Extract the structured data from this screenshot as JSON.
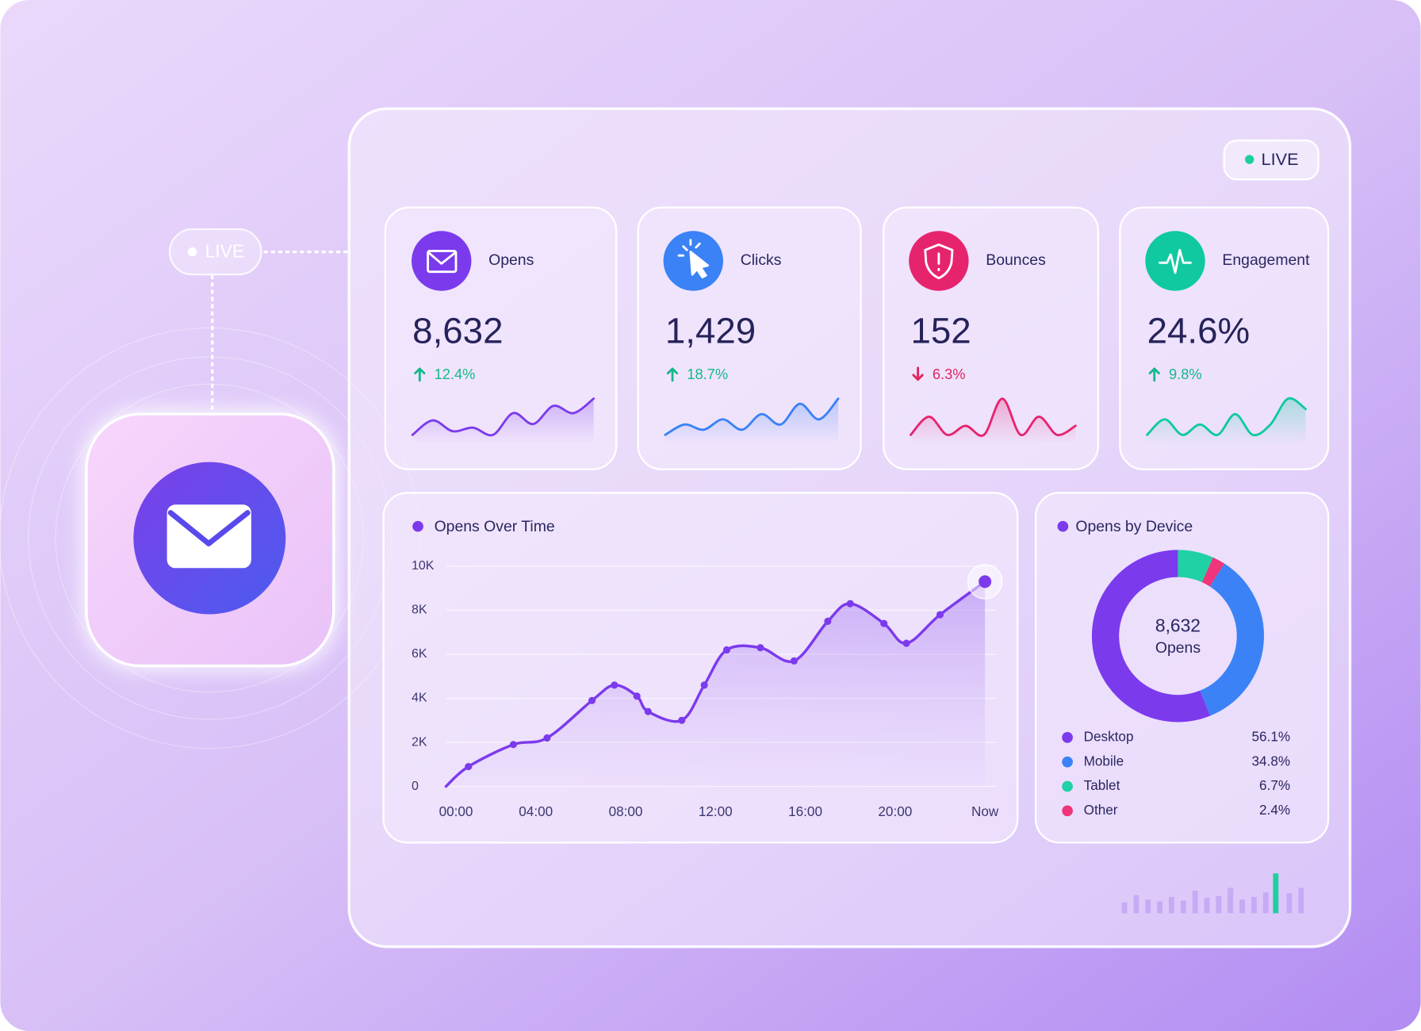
{
  "live_badge_left": "LIVE",
  "live_badge_top": "LIVE",
  "kpis": [
    {
      "label": "Opens",
      "value": "8,632",
      "change": "12.4%",
      "direction": "up",
      "color": "#7c3aed",
      "sparkline": [
        2,
        4,
        2.5,
        3,
        2,
        5,
        3.5,
        6,
        5,
        7
      ]
    },
    {
      "label": "Clicks",
      "value": "1,429",
      "change": "18.7%",
      "direction": "up",
      "color": "#3b82f6",
      "sparkline": [
        1,
        3,
        2,
        4,
        2,
        5,
        3,
        7,
        4,
        8
      ]
    },
    {
      "label": "Bounces",
      "value": "152",
      "change": "6.3%",
      "direction": "down",
      "color": "#e6246e",
      "sparkline": [
        3,
        5,
        3,
        4,
        3,
        7,
        3,
        5,
        3,
        4
      ]
    },
    {
      "label": "Engagement",
      "value": "24.6%",
      "change": "9.8%",
      "direction": "up",
      "color": "#10c9a0",
      "sparkline": [
        2,
        5,
        2,
        4,
        2,
        6,
        2,
        4,
        9,
        7
      ]
    }
  ],
  "opens_over_time": {
    "type": "line",
    "title": "Opens Over Time",
    "color": "#7c3aed",
    "x": [
      0,
      1,
      3,
      4.5,
      6.5,
      7.5,
      8.5,
      9,
      10.5,
      11.5,
      12.5,
      14,
      15.5,
      17,
      18,
      19.5,
      20.5,
      22,
      24
    ],
    "values": [
      0,
      900,
      1900,
      2200,
      3900,
      4600,
      4100,
      3400,
      3000,
      4600,
      6200,
      6300,
      5700,
      7500,
      8300,
      7400,
      6500,
      7800,
      9300
    ],
    "xlim": [
      0,
      24
    ],
    "xticks": [
      {
        "value": 0,
        "label": "00:00"
      },
      {
        "value": 4,
        "label": "04:00"
      },
      {
        "value": 8,
        "label": "08:00"
      },
      {
        "value": 12,
        "label": "12:00"
      },
      {
        "value": 16,
        "label": "16:00"
      },
      {
        "value": 20,
        "label": "20:00"
      },
      {
        "value": 24,
        "label": "Now"
      }
    ],
    "ylim": [
      0,
      10000
    ],
    "yticks": [
      0,
      {
        "value": 2000,
        "label": "2K"
      },
      {
        "value": 4000,
        "label": "4K"
      },
      {
        "value": 6000,
        "label": "6K"
      },
      {
        "value": 8000,
        "label": "8K"
      },
      {
        "value": 10000,
        "label": "10K"
      }
    ],
    "grid": true
  },
  "opens_by_device": {
    "type": "donut",
    "title": "Opens by Device",
    "center_value": "8,632",
    "center_label": "Opens",
    "categories": [
      "Desktop",
      "Mobile",
      "Tablet",
      "Other"
    ],
    "values": [
      56.1,
      34.8,
      6.7,
      2.4
    ],
    "value_labels": [
      "56.1%",
      "34.8%",
      "6.7%",
      "2.4%"
    ],
    "colors": [
      "#7c3aed",
      "#3b82f6",
      "#1fd1a5",
      "#f0357a"
    ]
  }
}
